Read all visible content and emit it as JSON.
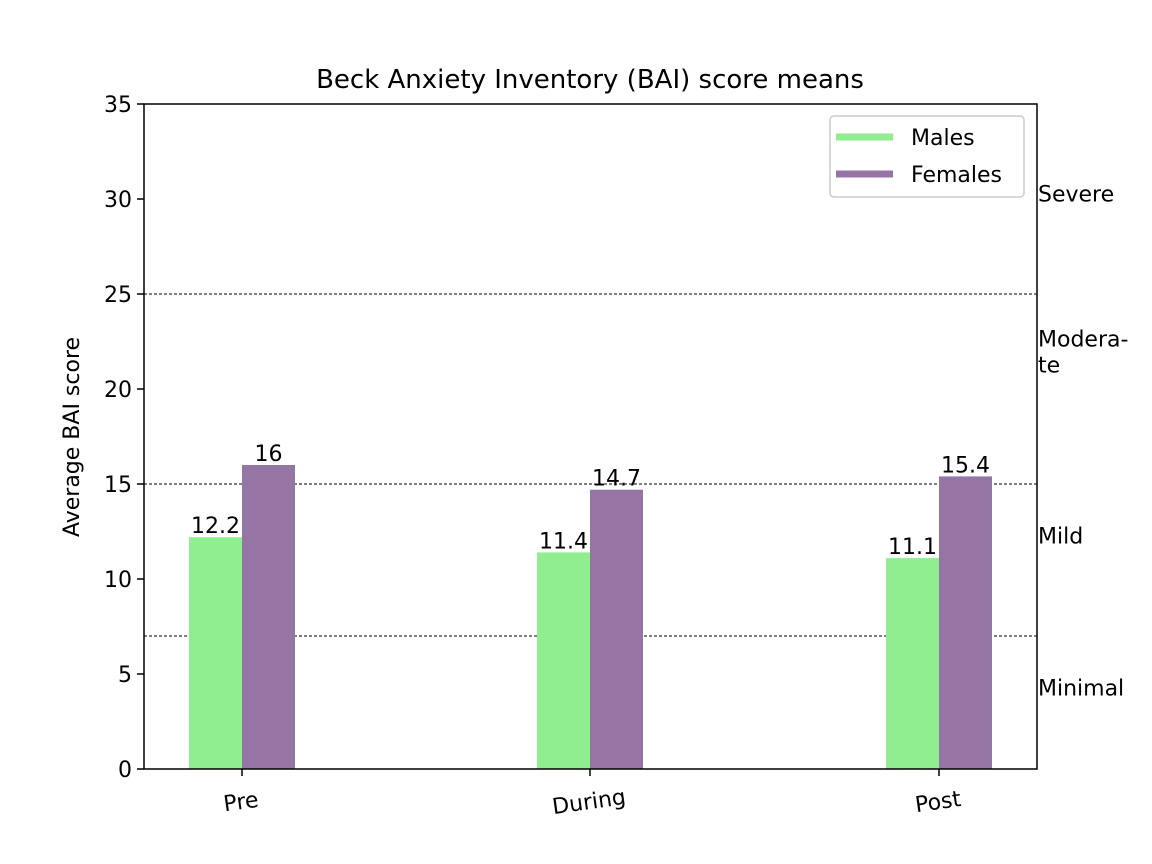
{
  "chart_data": {
    "type": "bar",
    "title": "Beck Anxiety Inventory (BAI) score means",
    "xlabel": "",
    "ylabel": "Average BAI score",
    "categories": [
      "Pre",
      "During",
      "Post"
    ],
    "series": [
      {
        "name": "Males",
        "values": [
          12.2,
          11.4,
          11.1
        ],
        "labels": [
          "12.2",
          "11.4",
          "11.1"
        ],
        "color": "#90ee90"
      },
      {
        "name": "Females",
        "values": [
          16,
          14.7,
          15.4
        ],
        "labels": [
          "16",
          "14.7",
          "15.4"
        ],
        "color": "#9575a4"
      }
    ],
    "ylim": [
      0,
      35
    ],
    "yticks": [
      0,
      5,
      10,
      15,
      20,
      25,
      30,
      35
    ],
    "ytick_labels": [
      "0",
      "5",
      "10",
      "15",
      "20",
      "25",
      "30",
      "35"
    ],
    "thresholds": [
      7,
      15,
      25
    ],
    "severity_regions": [
      {
        "lines": [
          "Minimal"
        ],
        "value": 4.3
      },
      {
        "lines": [
          "Mild"
        ],
        "value": 12.3
      },
      {
        "lines": [
          "Modera-",
          "te"
        ],
        "value": 21.3
      },
      {
        "lines": [
          "Severe"
        ],
        "value": 30.3
      }
    ],
    "legend_position": "upper right",
    "grid": false
  }
}
